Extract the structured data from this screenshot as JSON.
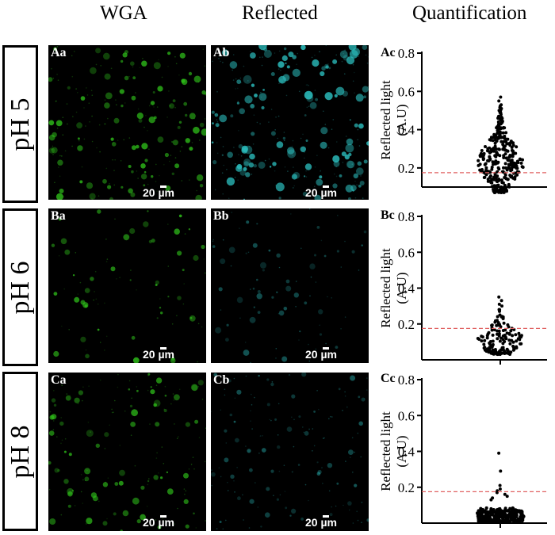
{
  "column_headers": {
    "wga": "WGA",
    "reflected": "Reflected",
    "quantification": "Quantification"
  },
  "rows": [
    {
      "condition": "pH 5",
      "wga_label": "Aa",
      "reflected_label": "Ab",
      "quant_label": "Ac",
      "scalebar": "20 µm"
    },
    {
      "condition": "pH 6",
      "wga_label": "Ba",
      "reflected_label": "Bb",
      "quant_label": "Bc",
      "scalebar": "20 µm"
    },
    {
      "condition": "pH 8",
      "wga_label": "Ca",
      "reflected_label": "Cb",
      "quant_label": "Cc",
      "scalebar": "20 µm"
    }
  ],
  "colors": {
    "wga": "#2fc21a",
    "reflected": "#2ab8b8",
    "threshold": "#e06060",
    "points": "#000000"
  },
  "chart_data": [
    {
      "type": "scatter",
      "panel": "Ac",
      "ylabel": "Reflected light",
      "yunit": "(A.U)",
      "ylim": [
        0.1,
        0.8
      ],
      "yticks": [
        "0.2",
        "0.4",
        "0.6",
        "0.8"
      ],
      "threshold": 0.175,
      "summary": {
        "min": 0.07,
        "max": 0.57,
        "median": 0.23,
        "count": 330
      },
      "values": [
        0.57,
        0.55,
        0.53,
        0.51,
        0.5,
        0.48,
        0.46,
        0.45,
        0.44,
        0.43,
        0.42,
        0.41,
        0.4,
        0.39,
        0.38,
        0.37,
        0.36,
        0.35,
        0.34,
        0.33
      ]
    },
    {
      "type": "scatter",
      "panel": "Bc",
      "ylabel": "Reflected light",
      "yunit": "(A.U)",
      "ylim": [
        0.0,
        0.8
      ],
      "yticks": [
        "0.2",
        "0.4",
        "0.6",
        "0.8"
      ],
      "threshold": 0.175,
      "summary": {
        "min": 0.03,
        "max": 0.35,
        "median": 0.11,
        "count": 150
      },
      "values": [
        0.35,
        0.33,
        0.31,
        0.3,
        0.28,
        0.27,
        0.25,
        0.24,
        0.22,
        0.21
      ]
    },
    {
      "type": "scatter",
      "panel": "Cc",
      "ylabel": "Reflected light",
      "yunit": "(A.U)",
      "ylim": [
        0.0,
        0.8
      ],
      "yticks": [
        "0.2",
        "0.4",
        "0.6",
        "0.8"
      ],
      "threshold": 0.175,
      "summary": {
        "min": 0.01,
        "max": 0.39,
        "median": 0.04,
        "count": 330
      },
      "values": [
        0.39,
        0.29,
        0.21,
        0.19,
        0.18,
        0.17,
        0.16,
        0.15,
        0.14,
        0.13
      ]
    }
  ]
}
